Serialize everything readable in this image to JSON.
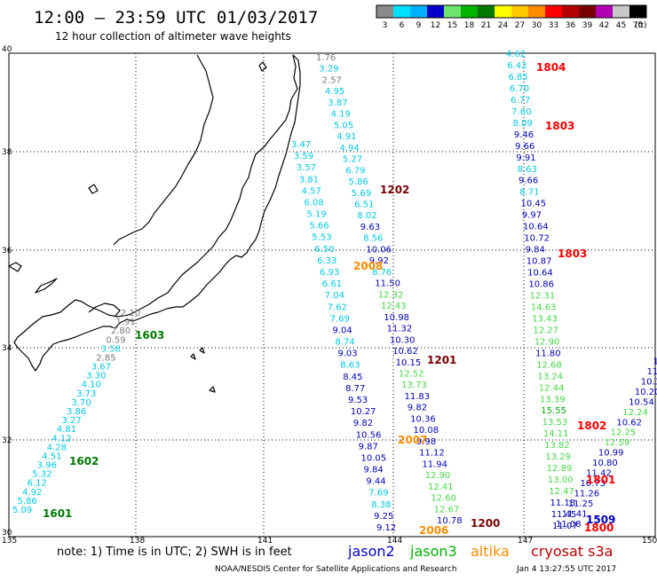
{
  "header": {
    "title": "12:00 – 23:59 UTC 01/03/2017",
    "subtitle": "12 hour collection of altimeter wave heights"
  },
  "colorbar": {
    "unit": "(ft)",
    "bins": [
      {
        "label": "3",
        "color": "#8a8a8a"
      },
      {
        "label": "6",
        "color": "#00e0ff"
      },
      {
        "label": "9",
        "color": "#00b0ff"
      },
      {
        "label": "12",
        "color": "#0000c8"
      },
      {
        "label": "15",
        "color": "#6ee66e"
      },
      {
        "label": "18",
        "color": "#00b400"
      },
      {
        "label": "21",
        "color": "#007800"
      },
      {
        "label": "24",
        "color": "#ffff00"
      },
      {
        "label": "27",
        "color": "#ffc800"
      },
      {
        "label": "30",
        "color": "#ff8c00"
      },
      {
        "label": "33",
        "color": "#ff0000"
      },
      {
        "label": "36",
        "color": "#b40000"
      },
      {
        "label": "39",
        "color": "#780000"
      },
      {
        "label": "42",
        "color": "#b400b4"
      },
      {
        "label": "45",
        "color": "#c8c8c8"
      },
      {
        "label": "70",
        "color": "#000000"
      }
    ]
  },
  "axes": {
    "lat_labels": [
      "40",
      "38",
      "36",
      "34",
      "32",
      "30"
    ],
    "lon_labels": [
      "135",
      "138",
      "141",
      "144",
      "147",
      "150"
    ]
  },
  "footer": {
    "note": "note: 1) Time is in UTC; 2) SWH is in feet",
    "credit": "NOAA/NESDIS Center for Satellite Applications and Research",
    "timestamp": "Jan  4 13:27:55 UTC 2017"
  },
  "legend": [
    {
      "name": "jason2",
      "color": "#0000c8"
    },
    {
      "name": "jason3",
      "color": "#00b400"
    },
    {
      "name": "altika",
      "color": "#ff8c00"
    },
    {
      "name": "cryosat s3a",
      "color": "#b40000"
    }
  ],
  "colors": {
    "gray": "#7a7a7a",
    "cyan": "#00c8e6",
    "navy": "#0000b4",
    "lgreen": "#44d844",
    "green": "#00aa00",
    "dgreen": "#007800",
    "orange": "#ff8c00",
    "red": "#ff0000",
    "maroon": "#780000"
  },
  "track_a": [
    {
      "t": "5.09",
      "c": "cyan"
    },
    {
      "t": "5.86",
      "c": "cyan"
    },
    {
      "t": "4.92",
      "c": "cyan"
    },
    {
      "t": "6.12",
      "c": "cyan"
    },
    {
      "t": "5.32",
      "c": "cyan"
    },
    {
      "t": "3.96",
      "c": "cyan"
    },
    {
      "t": "4.51",
      "c": "cyan"
    },
    {
      "t": "4.28",
      "c": "cyan"
    },
    {
      "t": "4.12",
      "c": "cyan"
    },
    {
      "t": "4.81",
      "c": "cyan"
    },
    {
      "t": "3.27",
      "c": "cyan"
    },
    {
      "t": "3.86",
      "c": "cyan"
    },
    {
      "t": "3.70",
      "c": "cyan"
    },
    {
      "t": "3.73",
      "c": "cyan"
    },
    {
      "t": "4.10",
      "c": "cyan"
    },
    {
      "t": "3.30",
      "c": "cyan"
    },
    {
      "t": "3.67",
      "c": "cyan"
    },
    {
      "t": "2.85",
      "c": "gray"
    },
    {
      "t": "3.58",
      "c": "cyan"
    },
    {
      "t": "0.59",
      "c": "gray"
    },
    {
      "t": "2.80",
      "c": "gray"
    },
    {
      "t": "1.91",
      "c": "gray"
    },
    {
      "t": "2.10",
      "c": "gray"
    }
  ],
  "track_b": [
    {
      "t": "1.76",
      "c": "gray"
    },
    {
      "t": "3.29",
      "c": "cyan"
    },
    {
      "t": "2.57",
      "c": "gray"
    },
    {
      "t": "4.95",
      "c": "cyan"
    },
    {
      "t": "3.87",
      "c": "cyan"
    },
    {
      "t": "4.19",
      "c": "cyan"
    },
    {
      "t": "5.05",
      "c": "cyan"
    },
    {
      "t": "4.91",
      "c": "cyan"
    },
    {
      "t": "4.94",
      "c": "cyan"
    },
    {
      "t": "5.27",
      "c": "cyan"
    },
    {
      "t": "6.79",
      "c": "cyan"
    },
    {
      "t": "5.86",
      "c": "cyan"
    },
    {
      "t": "5.69",
      "c": "cyan"
    },
    {
      "t": "6.51",
      "c": "cyan"
    },
    {
      "t": "8.02",
      "c": "cyan"
    },
    {
      "t": "9.63",
      "c": "navy"
    },
    {
      "t": "8.56",
      "c": "cyan"
    },
    {
      "t": "10.06",
      "c": "navy"
    },
    {
      "t": "9.92",
      "c": "navy"
    },
    {
      "t": "8.76",
      "c": "cyan"
    },
    {
      "t": "11.50",
      "c": "navy"
    },
    {
      "t": "12.32",
      "c": "lgreen"
    },
    {
      "t": "12.43",
      "c": "lgreen"
    },
    {
      "t": "10.98",
      "c": "navy"
    },
    {
      "t": "11.32",
      "c": "navy"
    },
    {
      "t": "10.30",
      "c": "navy"
    },
    {
      "t": "10.62",
      "c": "navy"
    },
    {
      "t": "10.15",
      "c": "navy"
    },
    {
      "t": "12.52",
      "c": "lgreen"
    },
    {
      "t": "13.73",
      "c": "lgreen"
    },
    {
      "t": "11.83",
      "c": "navy"
    },
    {
      "t": "9.82",
      "c": "navy"
    },
    {
      "t": "10.36",
      "c": "navy"
    },
    {
      "t": "10.08",
      "c": "navy"
    },
    {
      "t": "9.98",
      "c": "navy"
    },
    {
      "t": "11.12",
      "c": "navy"
    },
    {
      "t": "11.94",
      "c": "navy"
    },
    {
      "t": "12.90",
      "c": "lgreen"
    },
    {
      "t": "12.41",
      "c": "lgreen"
    },
    {
      "t": "12.60",
      "c": "lgreen"
    },
    {
      "t": "12.67",
      "c": "lgreen"
    },
    {
      "t": "10.78",
      "c": "navy"
    }
  ],
  "track_c": [
    {
      "t": "3.47",
      "c": "cyan"
    },
    {
      "t": "3.59",
      "c": "cyan"
    },
    {
      "t": "3.57",
      "c": "cyan"
    },
    {
      "t": "3.81",
      "c": "cyan"
    },
    {
      "t": "4.57",
      "c": "cyan"
    },
    {
      "t": "6.08",
      "c": "cyan"
    },
    {
      "t": "5.19",
      "c": "cyan"
    },
    {
      "t": "5.66",
      "c": "cyan"
    },
    {
      "t": "5.53",
      "c": "cyan"
    },
    {
      "t": "6.50",
      "c": "cyan"
    },
    {
      "t": "6.33",
      "c": "cyan"
    },
    {
      "t": "6.93",
      "c": "cyan"
    },
    {
      "t": "6.61",
      "c": "cyan"
    },
    {
      "t": "7.04",
      "c": "cyan"
    },
    {
      "t": "7.62",
      "c": "cyan"
    },
    {
      "t": "7.69",
      "c": "cyan"
    },
    {
      "t": "9.04",
      "c": "navy"
    },
    {
      "t": "8.74",
      "c": "cyan"
    },
    {
      "t": "9.03",
      "c": "navy"
    },
    {
      "t": "8.63",
      "c": "cyan"
    },
    {
      "t": "8.45",
      "c": "navy"
    },
    {
      "t": "8.77",
      "c": "navy"
    },
    {
      "t": "9.53",
      "c": "navy"
    },
    {
      "t": "10.27",
      "c": "navy"
    },
    {
      "t": "9.82",
      "c": "navy"
    },
    {
      "t": "10.56",
      "c": "navy"
    },
    {
      "t": "9.87",
      "c": "navy"
    },
    {
      "t": "10.05",
      "c": "navy"
    },
    {
      "t": "9.84",
      "c": "navy"
    },
    {
      "t": "9.44",
      "c": "navy"
    },
    {
      "t": "7.69",
      "c": "cyan"
    },
    {
      "t": "8.38",
      "c": "cyan"
    },
    {
      "t": "9.25",
      "c": "navy"
    },
    {
      "t": "9.12",
      "c": "navy"
    }
  ],
  "track_d": [
    {
      "t": "4.62",
      "c": "cyan"
    },
    {
      "t": "6.42",
      "c": "cyan"
    },
    {
      "t": "6.85",
      "c": "cyan"
    },
    {
      "t": "6.70",
      "c": "cyan"
    },
    {
      "t": "6.77",
      "c": "cyan"
    },
    {
      "t": "7.60",
      "c": "cyan"
    },
    {
      "t": "8.09",
      "c": "cyan"
    },
    {
      "t": "9.46",
      "c": "navy"
    },
    {
      "t": "9.66",
      "c": "navy"
    },
    {
      "t": "9.91",
      "c": "navy"
    },
    {
      "t": "8.63",
      "c": "cyan"
    },
    {
      "t": "9.66",
      "c": "navy"
    },
    {
      "t": "8.71",
      "c": "cyan"
    },
    {
      "t": "10.45",
      "c": "navy"
    },
    {
      "t": "9.97",
      "c": "navy"
    },
    {
      "t": "10.64",
      "c": "navy"
    },
    {
      "t": "10.72",
      "c": "navy"
    },
    {
      "t": "9.84",
      "c": "navy"
    },
    {
      "t": "10.87",
      "c": "navy"
    },
    {
      "t": "10.64",
      "c": "navy"
    },
    {
      "t": "10.86",
      "c": "navy"
    },
    {
      "t": "12.31",
      "c": "lgreen"
    },
    {
      "t": "14.63",
      "c": "lgreen"
    },
    {
      "t": "13.43",
      "c": "lgreen"
    },
    {
      "t": "12.27",
      "c": "lgreen"
    },
    {
      "t": "12.90",
      "c": "lgreen"
    },
    {
      "t": "11.80",
      "c": "navy"
    },
    {
      "t": "12.68",
      "c": "lgreen"
    },
    {
      "t": "13.24",
      "c": "lgreen"
    },
    {
      "t": "12.44",
      "c": "lgreen"
    },
    {
      "t": "13.39",
      "c": "lgreen"
    },
    {
      "t": "15.55",
      "c": "green"
    },
    {
      "t": "13.53",
      "c": "lgreen"
    },
    {
      "t": "14.11",
      "c": "lgreen"
    },
    {
      "t": "13.82",
      "c": "lgreen"
    },
    {
      "t": "13.29",
      "c": "lgreen"
    },
    {
      "t": "12.89",
      "c": "lgreen"
    },
    {
      "t": "13.00",
      "c": "lgreen"
    },
    {
      "t": "12.47",
      "c": "lgreen"
    },
    {
      "t": "11.18",
      "c": "navy"
    },
    {
      "t": "11.45",
      "c": "navy"
    },
    {
      "t": "11.07",
      "c": "navy"
    }
  ],
  "track_e": [
    {
      "t": "11",
      "c": "navy"
    },
    {
      "t": "11.",
      "c": "navy"
    },
    {
      "t": "11.5",
      "c": "navy"
    },
    {
      "t": "10.32",
      "c": "navy"
    },
    {
      "t": "11.49",
      "c": "navy"
    },
    {
      "t": "10.37",
      "c": "navy"
    },
    {
      "t": "10.20",
      "c": "navy"
    },
    {
      "t": "10.54",
      "c": "navy"
    },
    {
      "t": "12.24",
      "c": "lgreen"
    },
    {
      "t": "10.62",
      "c": "navy"
    },
    {
      "t": "12.25",
      "c": "lgreen"
    },
    {
      "t": "12.59",
      "c": "lgreen"
    },
    {
      "t": "10.99",
      "c": "navy"
    },
    {
      "t": "10.80",
      "c": "navy"
    },
    {
      "t": "11.42",
      "c": "navy"
    },
    {
      "t": "10.73",
      "c": "navy"
    },
    {
      "t": "11.26",
      "c": "navy"
    },
    {
      "t": "11.25",
      "c": "navy"
    },
    {
      "t": "11.41",
      "c": "navy"
    },
    {
      "t": "11.08",
      "c": "navy"
    }
  ],
  "time_labels": [
    {
      "t": "1603",
      "c": "dgreen"
    },
    {
      "t": "1602",
      "c": "dgreen"
    },
    {
      "t": "1601",
      "c": "dgreen"
    },
    {
      "t": "1202",
      "c": "maroon"
    },
    {
      "t": "2008",
      "c": "orange"
    },
    {
      "t": "1201",
      "c": "maroon"
    },
    {
      "t": "2007",
      "c": "orange"
    },
    {
      "t": "1200",
      "c": "maroon"
    },
    {
      "t": "2006",
      "c": "orange"
    },
    {
      "t": "1804",
      "c": "red"
    },
    {
      "t": "1803",
      "c": "red"
    },
    {
      "t": "1803",
      "c": "red"
    },
    {
      "t": "1802",
      "c": "red"
    },
    {
      "t": "1801",
      "c": "red"
    },
    {
      "t": "1509",
      "c": "navy"
    },
    {
      "t": "1800",
      "c": "red"
    }
  ]
}
